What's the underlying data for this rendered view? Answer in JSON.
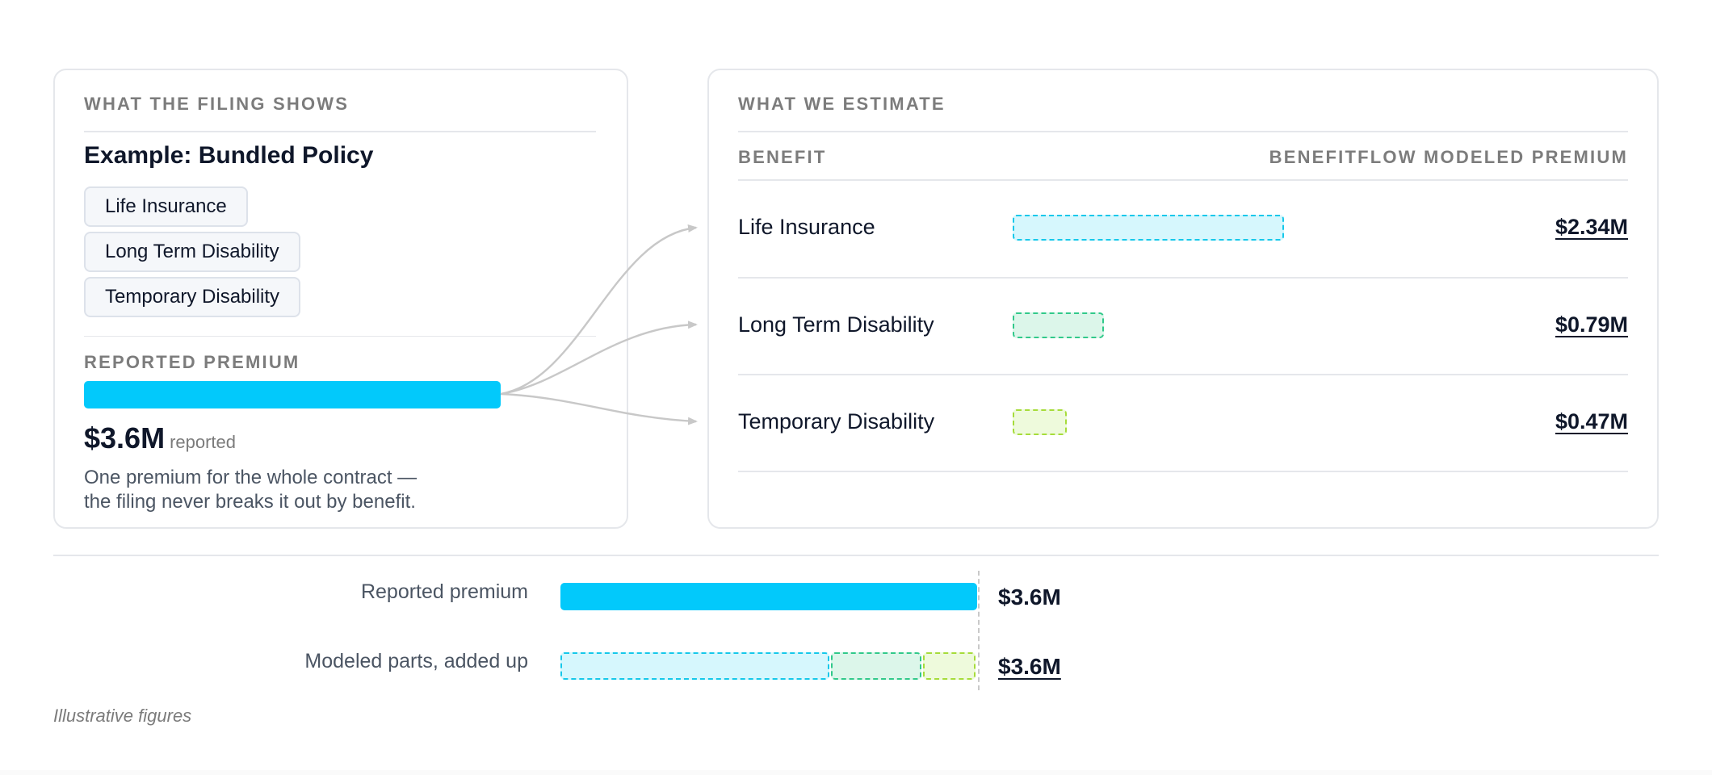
{
  "filing": {
    "eyebrow": "WHAT THE FILING SHOWS",
    "title": "Example: Bundled Policy",
    "pills": [
      "Life Insurance",
      "Long Term Disability",
      "Temporary Disability"
    ],
    "reported_label": "REPORTED PREMIUM",
    "reported_value": "$3.6M",
    "reported_suffix": "reported",
    "reported_amount_m": 3.6,
    "note_line1": "One premium for the whole contract —",
    "note_line2": "the filing never breaks it out by benefit."
  },
  "estimate": {
    "eyebrow": "WHAT WE ESTIMATE",
    "col_benefit": "BENEFIT",
    "col_premium": "BENEFITFLOW MODELED PREMIUM",
    "rows": [
      {
        "label": "Life Insurance",
        "value": "$2.34M",
        "amount_m": 2.34,
        "fill": "#d6f7fd",
        "stroke": "#15c8ea"
      },
      {
        "label": "Long Term Disability",
        "value": "$0.79M",
        "amount_m": 0.79,
        "fill": "#dcf6ea",
        "stroke": "#31c98a"
      },
      {
        "label": "Temporary Disability",
        "value": "$0.47M",
        "amount_m": 0.47,
        "fill": "#eefadc",
        "stroke": "#a6dc3a"
      }
    ]
  },
  "comparison": {
    "reported_label": "Reported premium",
    "reported_value": "$3.6M",
    "modeled_label": "Modeled parts, added up",
    "modeled_value": "$3.6M"
  },
  "caption": "Illustrative figures",
  "colors": {
    "reported_bar": "#02c9fb",
    "connector": "#c8c8c8"
  }
}
